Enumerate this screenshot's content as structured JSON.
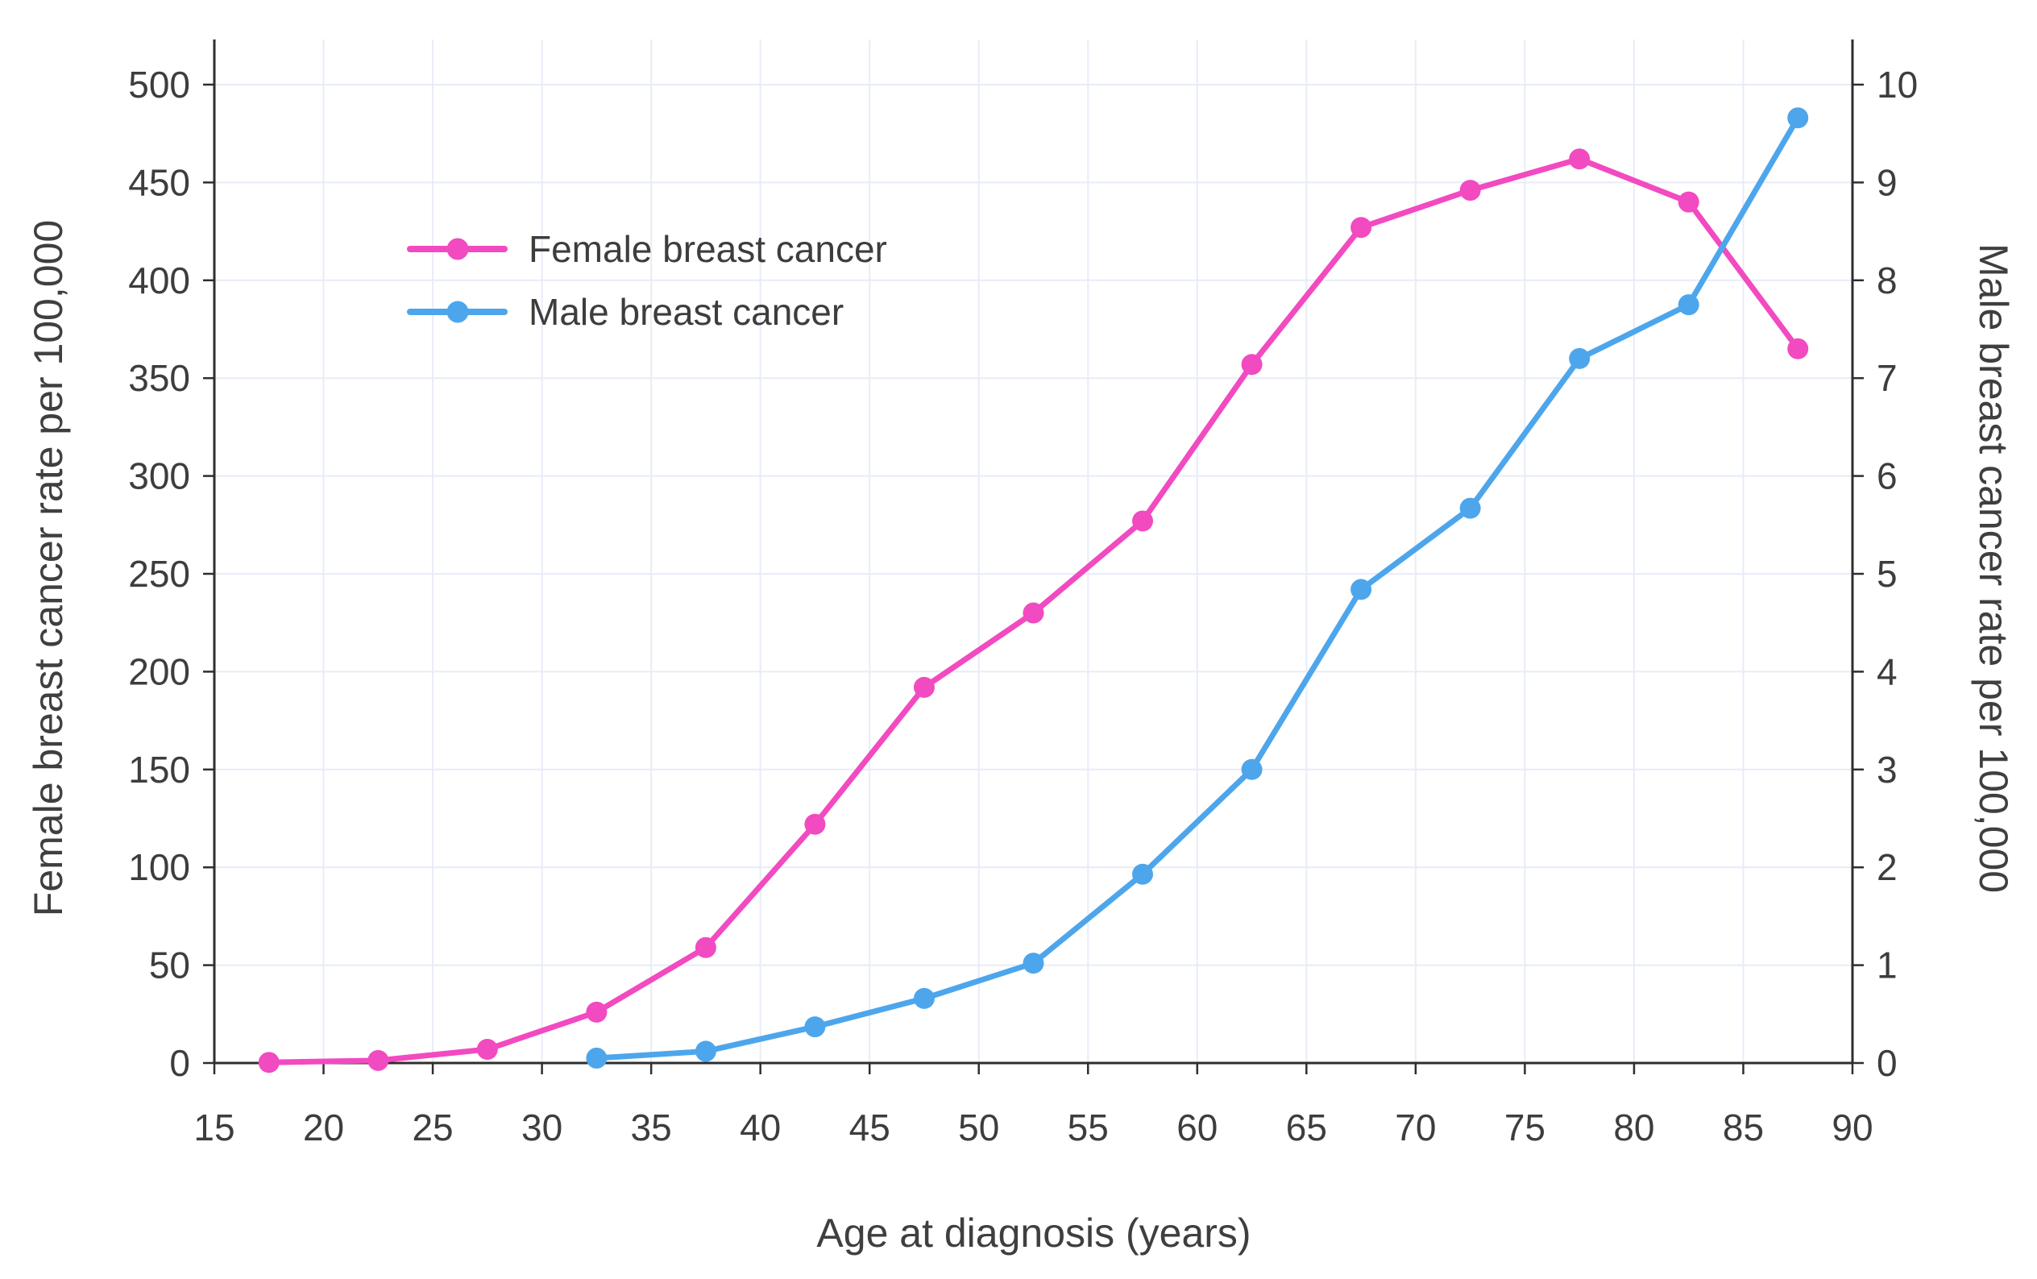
{
  "chart_data": {
    "type": "line",
    "title": "",
    "xlabel": "Age at diagnosis (years)",
    "ylabel_left": "Female breast cancer rate per 100,000",
    "ylabel_right": "Male breast cancer rate per 100,000",
    "xlim": [
      15,
      90
    ],
    "ylim_left": [
      0,
      500
    ],
    "ylim_right": [
      0,
      10
    ],
    "x_ticks": [
      15,
      20,
      25,
      30,
      35,
      40,
      45,
      50,
      55,
      60,
      65,
      70,
      75,
      80,
      85,
      90
    ],
    "y_ticks_left": [
      0,
      50,
      100,
      150,
      200,
      250,
      300,
      350,
      400,
      450,
      500
    ],
    "y_ticks_right": [
      0,
      1,
      2,
      3,
      4,
      5,
      6,
      7,
      8,
      9,
      10
    ],
    "grid": true,
    "legend_position": "upper-left-inside",
    "series": [
      {
        "name": "Female breast cancer",
        "axis": "left",
        "color": "#F24AC0",
        "points": [
          [
            17.5,
            0.3
          ],
          [
            22.5,
            1.3
          ],
          [
            27.5,
            7
          ],
          [
            32.5,
            26
          ],
          [
            37.5,
            59
          ],
          [
            42.5,
            122
          ],
          [
            47.5,
            192
          ],
          [
            52.5,
            230
          ],
          [
            57.5,
            277
          ],
          [
            62.5,
            357
          ],
          [
            67.5,
            427
          ],
          [
            72.5,
            446
          ],
          [
            77.5,
            462
          ],
          [
            82.5,
            440
          ],
          [
            87.5,
            365
          ]
        ]
      },
      {
        "name": "Male breast cancer",
        "axis": "right",
        "color": "#4DA6EC",
        "points": [
          [
            32.5,
            0.05
          ],
          [
            37.5,
            0.12
          ],
          [
            42.5,
            0.37
          ],
          [
            47.5,
            0.66
          ],
          [
            52.5,
            1.02
          ],
          [
            57.5,
            1.93
          ],
          [
            62.5,
            3.0
          ],
          [
            67.5,
            4.84
          ],
          [
            72.5,
            5.67
          ],
          [
            77.5,
            7.2
          ],
          [
            82.5,
            7.75
          ],
          [
            87.5,
            9.66
          ]
        ]
      }
    ],
    "colors": {
      "axis": "#2E2E2E",
      "tick_label": "#3D3D3D",
      "grid": "#E8ECF8",
      "background": "#FFFFFF"
    }
  }
}
